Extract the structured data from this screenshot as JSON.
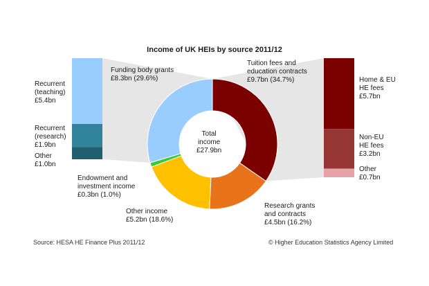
{
  "chart_data": {
    "type": "pie",
    "title": "Income of UK HEIs by source 2011/12",
    "center_label": "Total\nincome\n£27.9bn",
    "total_bn": 27.9,
    "slices": [
      {
        "name": "Tuition fees and education contracts",
        "value": 9.7,
        "percent": 34.7,
        "label": "Tuition fees and\neducation contracts\n£9.7bn (34.7%)",
        "color": "#7b0000"
      },
      {
        "name": "Research grants and contracts",
        "value": 4.5,
        "percent": 16.2,
        "label": "Research grants\nand contracts\n£4.5bn (16.2%)",
        "color": "#e8731a"
      },
      {
        "name": "Other income",
        "value": 5.2,
        "percent": 18.6,
        "label": "Other income\n£5.2bn (18.6%)",
        "color": "#ffc000"
      },
      {
        "name": "Endowment and investment income",
        "value": 0.3,
        "percent": 1.0,
        "label": "Endowment and\ninvestment income\n£0.3bn (1.0%)",
        "color": "#33cc33"
      },
      {
        "name": "Funding body grants",
        "value": 8.3,
        "percent": 29.6,
        "label": "Funding body grants\n£8.3bn (29.6%)",
        "color": "#99ccff"
      }
    ],
    "breakdowns": [
      {
        "parent": "Funding body grants",
        "segments": [
          {
            "name": "Recurrent (teaching)",
            "value": 5.4,
            "label": "Recurrent\n(teaching)\n£5.4bn",
            "color": "#99ccff"
          },
          {
            "name": "Recurrent (research)",
            "value": 1.9,
            "label": "Recurrent\n(research)\n£1.9bn",
            "color": "#31849b"
          },
          {
            "name": "Other",
            "value": 1.0,
            "label": "Other\n£1.0bn",
            "color": "#1f5f6e"
          }
        ]
      },
      {
        "parent": "Tuition fees and education contracts",
        "segments": [
          {
            "name": "Home & EU HE fees",
            "value": 5.7,
            "label": "Home & EU\nHE fees\n£5.7bn",
            "color": "#7b0000"
          },
          {
            "name": "Non-EU HE fees",
            "value": 3.2,
            "label": "Non-EU\nHE fees\n£3.2bn",
            "color": "#963634"
          },
          {
            "name": "Other",
            "value": 0.7,
            "label": "Other\n£0.7bn",
            "color": "#e6a3a8"
          }
        ]
      }
    ],
    "colors": {
      "connector": "#e6e6e6"
    }
  },
  "footer": {
    "source": "Source: HESA HE Finance Plus 2011/12",
    "copyright": "© Higher Education Statistics Agency Limited"
  }
}
